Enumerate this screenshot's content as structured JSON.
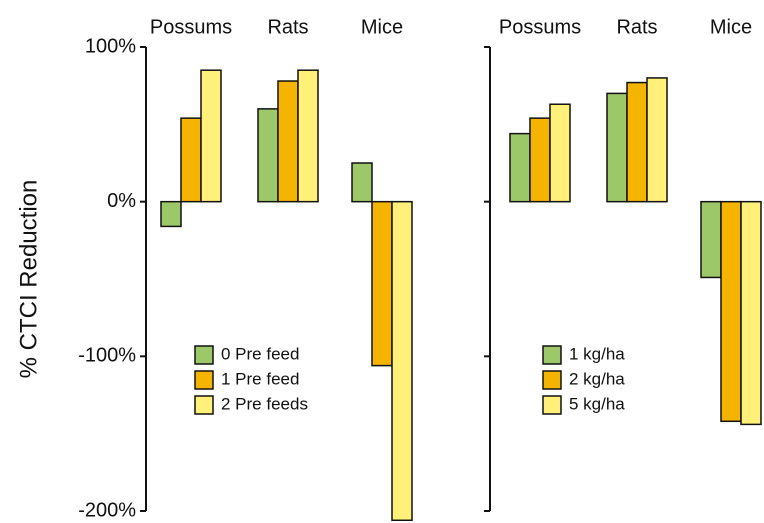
{
  "chart_data": [
    {
      "type": "bar",
      "y_label": "% CTCI Reduction",
      "categories": [
        "Possums",
        "Rats",
        "Mice"
      ],
      "series": [
        {
          "name": "0 Pre feed",
          "color": "#9dc86a",
          "values": [
            -16,
            60,
            25
          ]
        },
        {
          "name": "1 Pre feed",
          "color": "#f5b400",
          "values": [
            54,
            78,
            -106
          ]
        },
        {
          "name": "2 Pre feeds",
          "color": "#fff07a",
          "values": [
            85,
            85,
            -206
          ]
        }
      ],
      "ylim": [
        -200,
        100
      ],
      "yticks": [
        {
          "value": -200,
          "label": "-200%"
        },
        {
          "value": -100,
          "label": "-100%"
        },
        {
          "value": 0,
          "label": "0%"
        },
        {
          "value": 100,
          "label": "100%"
        }
      ]
    },
    {
      "type": "bar",
      "categories": [
        "Possums",
        "Rats",
        "Mice"
      ],
      "series": [
        {
          "name": "1 kg/ha",
          "color": "#9dc86a",
          "values": [
            44,
            70,
            -49
          ]
        },
        {
          "name": "2 kg/ha",
          "color": "#f5b400",
          "values": [
            54,
            77,
            -142
          ]
        },
        {
          "name": "5 kg/ha",
          "color": "#fff07a",
          "values": [
            63,
            80,
            -144
          ]
        }
      ],
      "ylim": [
        -200,
        100
      ],
      "yticks": [
        -200,
        -100,
        0,
        100
      ]
    }
  ]
}
